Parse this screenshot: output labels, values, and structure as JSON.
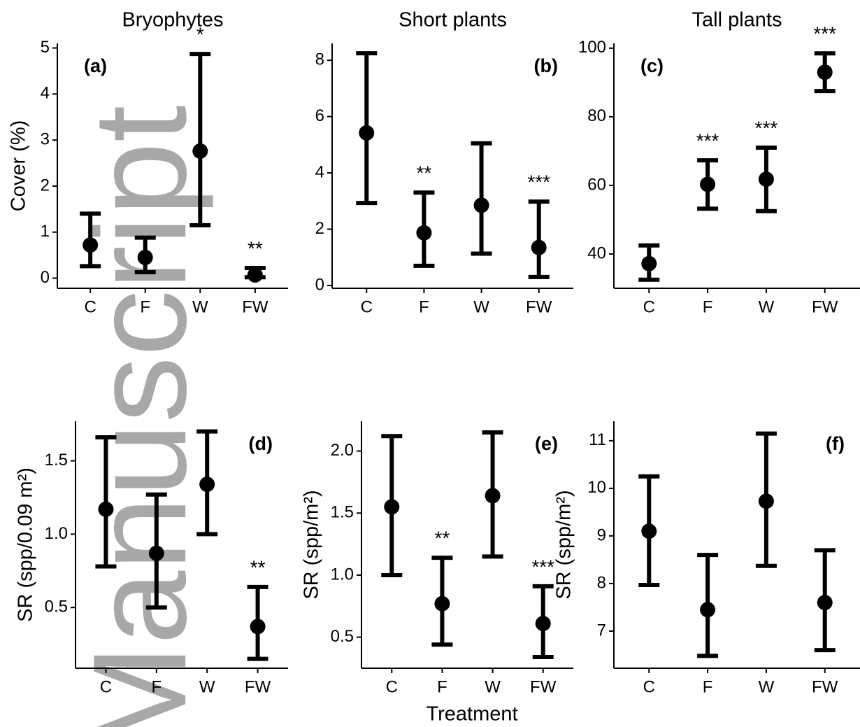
{
  "watermark": "Manuscript",
  "xlabel": "Treatment",
  "chart_data": [
    {
      "type": "errorbar",
      "title": "Bryophytes",
      "ylabel": "Cover (%)",
      "panel_label": "(a)",
      "label_corner": "top-left",
      "categories": [
        "C",
        "F",
        "W",
        "FW"
      ],
      "values": [
        0.72,
        0.45,
        2.76,
        0.07
      ],
      "lower": [
        0.26,
        0.13,
        1.15,
        0.02
      ],
      "upper": [
        1.4,
        0.88,
        4.87,
        0.22
      ],
      "annotations": [
        null,
        null,
        "*",
        "**"
      ],
      "ylim": [
        -0.22,
        5.1
      ],
      "yticks": [
        0,
        1,
        2,
        3,
        4,
        5
      ],
      "color": "#000000"
    },
    {
      "type": "errorbar",
      "title": "Short plants",
      "panel_label": "(b)",
      "label_corner": "top-right",
      "categories": [
        "C",
        "F",
        "W",
        "FW"
      ],
      "values": [
        5.42,
        1.87,
        2.85,
        1.35
      ],
      "lower": [
        2.93,
        0.7,
        1.13,
        0.3
      ],
      "upper": [
        8.25,
        3.3,
        5.05,
        2.98
      ],
      "annotations": [
        null,
        "**",
        null,
        "***"
      ],
      "ylim": [
        -0.1,
        8.6
      ],
      "yticks": [
        0,
        2,
        4,
        6,
        8
      ],
      "color": "#000000"
    },
    {
      "type": "errorbar",
      "title": "Tall plants",
      "panel_label": "(c)",
      "label_corner": "top-left",
      "categories": [
        "C",
        "F",
        "W",
        "FW"
      ],
      "values": [
        37.2,
        60.3,
        61.8,
        93
      ],
      "lower": [
        32.5,
        53.2,
        52.5,
        87.5
      ],
      "upper": [
        42.5,
        67.3,
        71,
        98.5
      ],
      "annotations": [
        null,
        "***",
        "***",
        "***"
      ],
      "ylim": [
        30,
        101.4
      ],
      "yticks": [
        40,
        60,
        80,
        100
      ],
      "color": "#000000"
    },
    {
      "type": "errorbar",
      "ylabel": "SR (spp/0.09 m²)",
      "panel_label": "(d)",
      "label_corner": "top-right",
      "categories": [
        "C",
        "F",
        "W",
        "FW"
      ],
      "values": [
        1.17,
        0.87,
        1.34,
        0.37
      ],
      "lower": [
        0.78,
        0.5,
        1.0,
        0.15
      ],
      "upper": [
        1.66,
        1.27,
        1.7,
        0.64
      ],
      "annotations": [
        null,
        null,
        null,
        "**"
      ],
      "ylim": [
        0.086,
        1.77
      ],
      "yticks": [
        0.5,
        {
          "value": 1,
          "label": "1.0"
        },
        1.5
      ],
      "color": "#000000"
    },
    {
      "type": "errorbar",
      "ylabel": "SR (spp/m²)",
      "panel_label": "(e)",
      "label_corner": "top-right",
      "categories": [
        "C",
        "F",
        "W",
        "FW"
      ],
      "values": [
        1.55,
        0.77,
        1.64,
        0.61
      ],
      "lower": [
        1.0,
        0.44,
        1.15,
        0.34
      ],
      "upper": [
        2.12,
        1.14,
        2.15,
        0.91
      ],
      "annotations": [
        null,
        "**",
        null,
        "***"
      ],
      "ylim": [
        0.25,
        2.24
      ],
      "yticks": [
        0.5,
        {
          "value": 1,
          "label": "1.0"
        },
        1.5,
        {
          "value": 2,
          "label": "2.0"
        }
      ],
      "color": "#000000"
    },
    {
      "type": "errorbar",
      "ylabel": "SR (spp/m²)",
      "panel_label": "(f)",
      "label_corner": "top-right",
      "categories": [
        "C",
        "F",
        "W",
        "FW"
      ],
      "values": [
        9.1,
        7.45,
        9.73,
        7.6
      ],
      "lower": [
        7.97,
        6.48,
        8.37,
        6.6
      ],
      "upper": [
        10.25,
        8.6,
        11.15,
        8.7
      ],
      "annotations": [
        null,
        null,
        null,
        null
      ],
      "ylim": [
        6.22,
        11.41
      ],
      "yticks": [
        7,
        8,
        9,
        10,
        11
      ],
      "color": "#000000"
    }
  ]
}
